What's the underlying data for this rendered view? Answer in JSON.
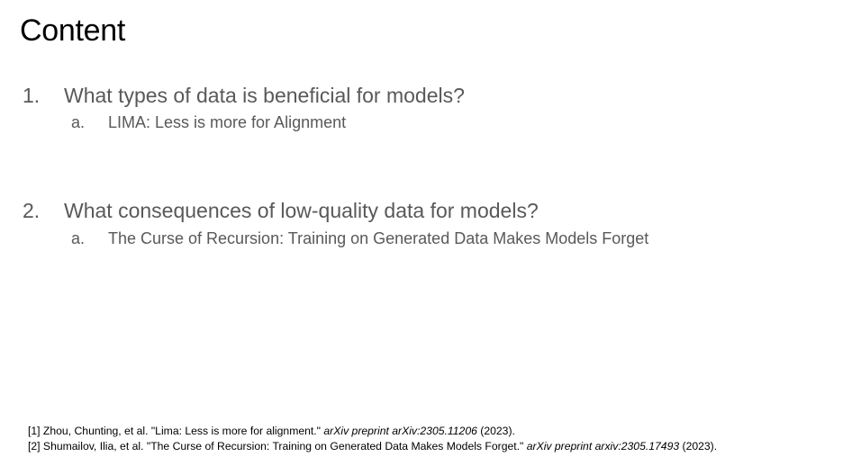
{
  "slide": {
    "title": "Content",
    "items": [
      {
        "number": "1.",
        "text": "What types of data is beneficial for models?",
        "sub": {
          "letter": "a.",
          "text": "LIMA: Less is more for Alignment"
        }
      },
      {
        "number": "2.",
        "text": "What consequences of low-quality data for models?",
        "sub": {
          "letter": "a.",
          "text": "The Curse of Recursion: Training on Generated Data Makes Models Forget"
        }
      }
    ],
    "references": [
      {
        "lead": "[1] Zhou, Chunting, et al. \"Lima: Less is more for alignment.\" ",
        "venue": "arXiv preprint arXiv:2305.11206",
        "tail": " (2023)."
      },
      {
        "lead": "[2] Shumailov, Ilia, et al. \"The Curse of Recursion: Training on Generated Data Makes Models Forget.\" ",
        "venue": "arXiv preprint arxiv:2305.17493",
        "tail": " (2023)."
      }
    ]
  }
}
